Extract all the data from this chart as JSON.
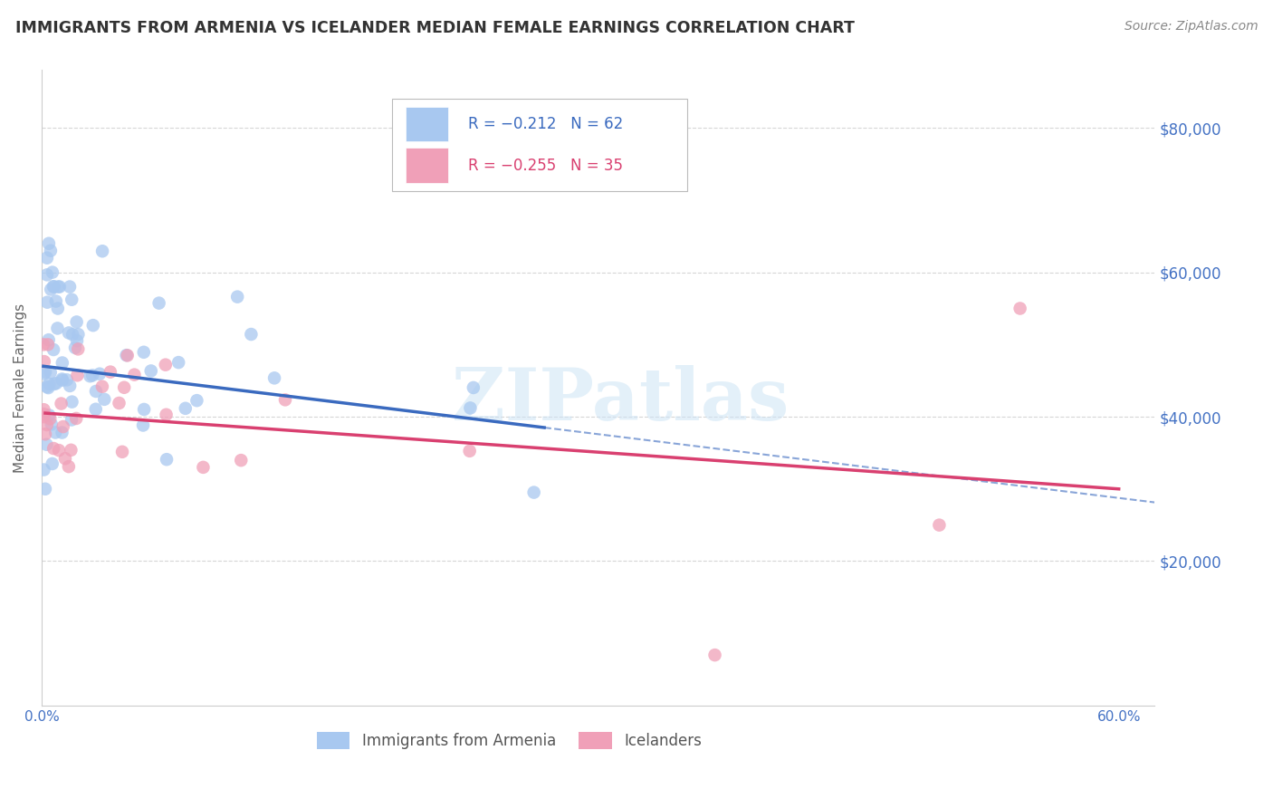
{
  "title": "IMMIGRANTS FROM ARMENIA VS ICELANDER MEDIAN FEMALE EARNINGS CORRELATION CHART",
  "source": "Source: ZipAtlas.com",
  "ylabel": "Median Female Earnings",
  "xlim": [
    0.0,
    0.62
  ],
  "ylim": [
    0,
    88000
  ],
  "yticks": [
    20000,
    40000,
    60000,
    80000
  ],
  "ytick_labels": [
    "$20,000",
    "$40,000",
    "$60,000",
    "$80,000"
  ],
  "xticks": [
    0.0,
    0.1,
    0.2,
    0.3,
    0.4,
    0.5,
    0.6
  ],
  "xtick_labels": [
    "0.0%",
    "",
    "",
    "",
    "",
    "",
    "60.0%"
  ],
  "watermark": "ZIPatlas",
  "color_armenia": "#a8c8f0",
  "color_icelander": "#f0a0b8",
  "color_line_armenia": "#3a6abf",
  "color_line_icelander": "#d94070",
  "color_axis_labels": "#4472c4",
  "color_title": "#333333",
  "color_source": "#888888",
  "background_color": "#ffffff",
  "grid_color": "#cccccc",
  "legend_r1_val": "R = −0.212",
  "legend_n1_val": "N = 62",
  "legend_r2_val": "R = −0.255",
  "legend_n2_val": "N = 35",
  "arm_trend_x0": 0.0,
  "arm_trend_y0": 47000,
  "arm_trend_x1": 0.28,
  "arm_trend_y1": 38500,
  "arm_trend_ext_x1": 0.62,
  "arm_trend_ext_y1": 21000,
  "ice_trend_x0": 0.002,
  "ice_trend_y0": 40500,
  "ice_trend_x1": 0.6,
  "ice_trend_y1": 30000
}
